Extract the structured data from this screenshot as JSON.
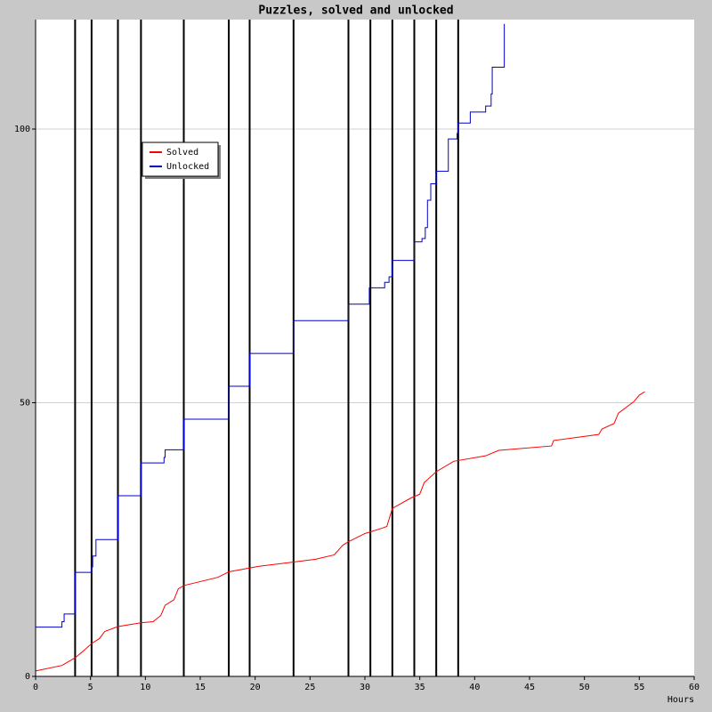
{
  "chart_data": {
    "type": "line",
    "title": "Puzzles, solved and unlocked",
    "x_label": "Hours",
    "xlim": [
      0,
      60
    ],
    "xticks": [
      0,
      5,
      10,
      15,
      20,
      25,
      30,
      35,
      40,
      45,
      50,
      55,
      60
    ],
    "ylim": [
      0,
      120
    ],
    "yticks": [
      0,
      50,
      100
    ],
    "grid": true,
    "legend": "upper left",
    "event_lines": [
      3.6,
      5.1,
      7.5,
      9.6,
      13.5,
      17.6,
      19.5,
      23.5,
      28.5,
      30.5,
      32.5,
      34.5,
      36.5,
      38.5
    ],
    "series": [
      {
        "name": "Solved",
        "color": "#ff0000",
        "step": false,
        "x": [
          0,
          2.4,
          3.6,
          4.5,
          5.1,
          5.8,
          6.3,
          7.5,
          9.6,
          10.7,
          11.4,
          11.8,
          12.6,
          13,
          13.5,
          16.6,
          17.6,
          20.3,
          23.5,
          25.5,
          27.2,
          28,
          28.5,
          30,
          31.6,
          32,
          32.5,
          34.2,
          35,
          35.4,
          36.5,
          38.1,
          41,
          42.2,
          47,
          47.2,
          51.3,
          51.6,
          52.7,
          53.1,
          54.5,
          55,
          55.5
        ],
        "values": [
          1,
          2,
          3.4,
          4.9,
          6,
          6.9,
          8.2,
          9.1,
          9.8,
          10,
          11.1,
          13,
          14,
          16,
          16.6,
          18.1,
          19.1,
          20.1,
          20.9,
          21.4,
          22.2,
          24,
          24.6,
          26.1,
          27.1,
          27.4,
          30.7,
          32.6,
          33.3,
          35.4,
          37.4,
          39.3,
          40.3,
          41.3,
          42.1,
          43.1,
          44.2,
          45.2,
          46.2,
          48.1,
          50.2,
          51.4,
          52
        ]
      },
      {
        "name": "Unlocked",
        "color": "#0000cc",
        "step": true,
        "x": [
          0,
          2.4,
          2.6,
          3.6,
          5.1,
          5.2,
          5.5,
          7.5,
          7.5,
          9.6,
          11.7,
          11.8,
          13.5,
          17.6,
          19.5,
          23.5,
          28.5,
          30.4,
          31.8,
          32.2,
          32.5,
          34.5,
          35.2,
          35.5,
          35.7,
          36,
          36.5,
          37.6,
          38.4,
          38.5,
          39.6,
          41,
          41.5,
          41.6,
          42.7,
          42.7
        ],
        "values": [
          9,
          10,
          11.4,
          19,
          20,
          22,
          25,
          27,
          33,
          39,
          40,
          41.4,
          47,
          53,
          59,
          65,
          68,
          71,
          72,
          73,
          76,
          79.4,
          80,
          82,
          87,
          90,
          92.3,
          98.2,
          99.2,
          101.1,
          103.1,
          104.2,
          106.4,
          111.3,
          112.2,
          119.2
        ]
      }
    ]
  }
}
